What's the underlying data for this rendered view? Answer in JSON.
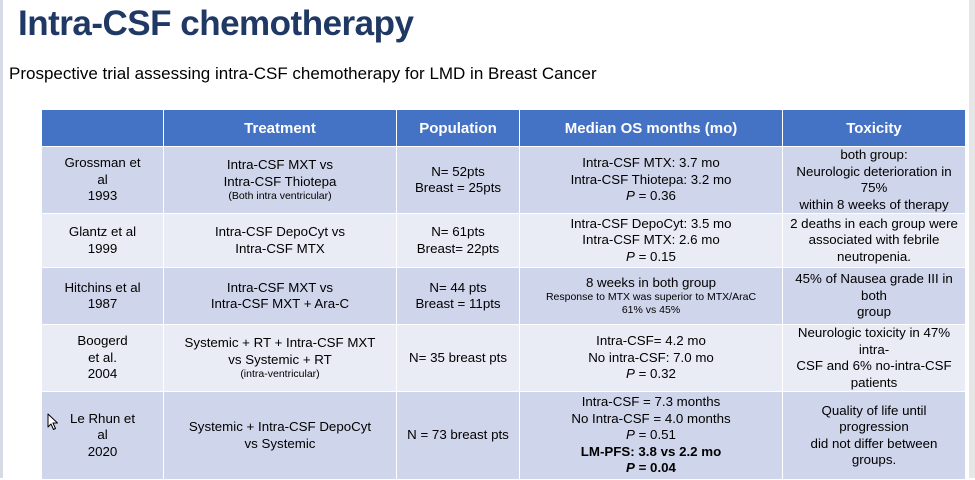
{
  "slide": {
    "title": "Intra-CSF chemotherapy",
    "subtitle": "Prospective trial assessing intra-CSF chemotherapy for LMD in Breast Cancer"
  },
  "table": {
    "headers": [
      "",
      "Treatment",
      "Population",
      "Median OS months (mo)",
      "Toxicity"
    ],
    "rows": [
      {
        "study": [
          "Grossman et",
          "al",
          "1993"
        ],
        "treatment": [
          "Intra-CSF MXT vs",
          "Intra-CSF Thiotepa"
        ],
        "treatment_note": "(Both intra ventricular)",
        "population": [
          "N= 52pts",
          "Breast = 25pts"
        ],
        "os": [
          "Intra-CSF MTX: 3.7 mo",
          "Intra-CSF Thiotepa: 3.2 mo"
        ],
        "os_p_label": "P",
        "os_p_value": " = 0.36",
        "toxicity": [
          "both group:",
          "Neurologic deterioration in 75%",
          "within 8 weeks of therapy"
        ]
      },
      {
        "study": [
          "Glantz et al",
          "1999"
        ],
        "treatment": [
          "Intra-CSF DepoCyt vs",
          "Intra-CSF MTX"
        ],
        "population": [
          "N= 61pts",
          "Breast= 22pts"
        ],
        "os": [
          "Intra-CSF DepoCyt: 3.5 mo",
          "Intra-CSF MTX: 2.6 mo"
        ],
        "os_p_label": "P",
        "os_p_value": " = 0.15",
        "toxicity": [
          "2 deaths in each group were",
          "associated with febrile",
          "neutropenia."
        ]
      },
      {
        "study": [
          "Hitchins et al",
          "1987"
        ],
        "treatment": [
          "Intra-CSF MXT vs",
          "Intra-CSF MXT + Ara-C"
        ],
        "population": [
          "N= 44 pts",
          "Breast = 11pts"
        ],
        "os": [
          "8 weeks in both group"
        ],
        "os_notes": [
          "Response to MTX was superior to MTX/AraC",
          "61% vs 45%"
        ],
        "toxicity": [
          "45% of Nausea grade III in both",
          "group"
        ]
      },
      {
        "study": [
          "Boogerd",
          "et al.",
          "2004"
        ],
        "treatment": [
          "Systemic + RT + Intra-CSF MXT",
          "vs Systemic + RT"
        ],
        "treatment_note": "(intra-ventricular)",
        "population": [
          "N= 35 breast pts"
        ],
        "os": [
          "Intra-CSF= 4.2 mo",
          "No intra-CSF: 7.0 mo"
        ],
        "os_p_label": "P",
        "os_p_value": " = 0.32",
        "toxicity": [
          "Neurologic toxicity in 47% intra-",
          "CSF and 6% no-intra-CSF",
          "patients"
        ]
      },
      {
        "study": [
          "Le Rhun et",
          "al",
          "2020"
        ],
        "treatment": [
          "Systemic + Intra-CSF DepoCyt",
          "vs Systemic"
        ],
        "population": [
          "N = 73 breast pts"
        ],
        "os": [
          "Intra-CSF = 7.3 months",
          "No Intra-CSF = 4.0 months"
        ],
        "os_p_label": "P",
        "os_p_value": " = 0.51",
        "os_bold": "LM-PFS: 3.8 vs 2.2 mo",
        "os_bold_p_label": "P",
        "os_bold_p_value": " = 0.04",
        "toxicity": [
          "Quality of life until progression",
          "did not differ between groups."
        ]
      }
    ]
  }
}
